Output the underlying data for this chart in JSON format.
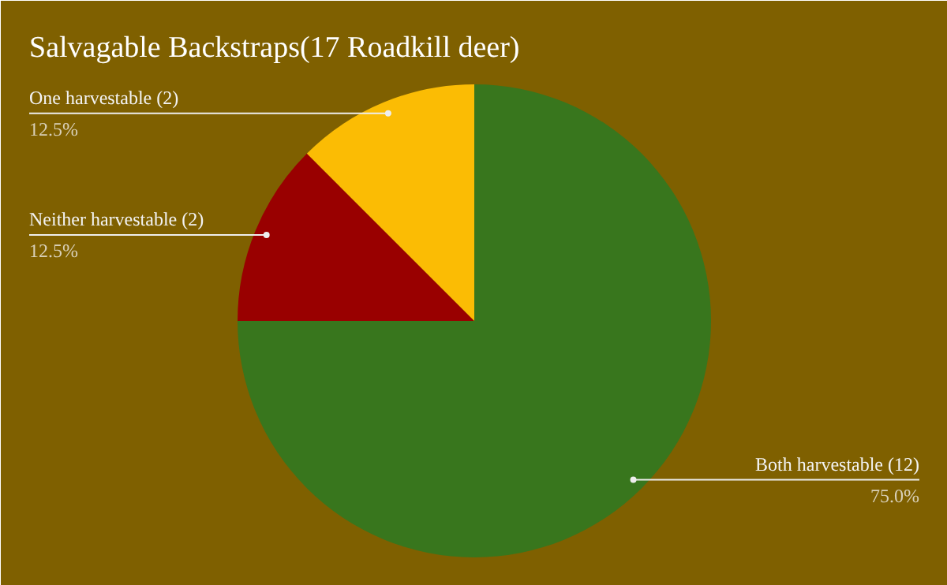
{
  "chart_data": {
    "type": "pie",
    "title": "Salvagable Backstraps(17 Roadkill deer)",
    "categories": [
      "Both harvestable (12)",
      "Neither harvestable (2)",
      "One harvestable (2)"
    ],
    "values": [
      75.0,
      12.5,
      12.5
    ],
    "value_labels": [
      "75.0%",
      "12.5%",
      "12.5%"
    ],
    "colors": [
      "#38761d",
      "#990000",
      "#fbbc04"
    ]
  }
}
